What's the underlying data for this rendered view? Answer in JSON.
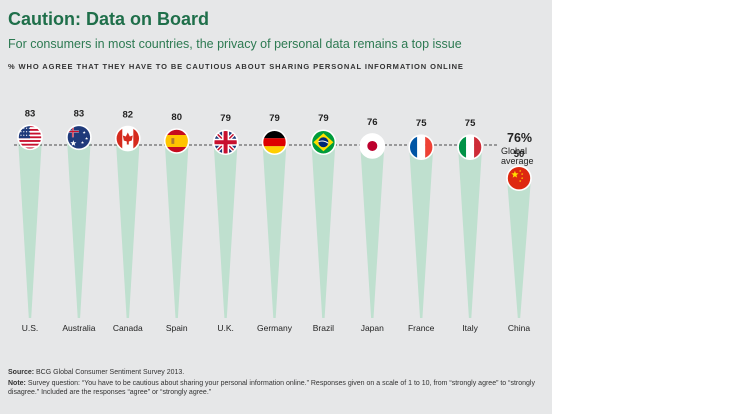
{
  "title": "Caution: Data on Board",
  "subtitle": "For consumers in most countries, the privacy of personal data remains a top issue",
  "chart_data": {
    "type": "bar",
    "title": "Caution: Data on Board",
    "subtitle": "For consumers in most countries, the privacy of personal data remains a top issue",
    "ylabel": "% WHO AGREE THAT THEY HAVE TO BE CAUTIOUS ABOUT SHARING PERSONAL INFORMATION ONLINE",
    "xlabel": "",
    "categories": [
      "U.S.",
      "Australia",
      "Canada",
      "Spain",
      "U.K.",
      "Germany",
      "Brazil",
      "Japan",
      "France",
      "Italy",
      "China"
    ],
    "values": [
      83,
      83,
      82,
      80,
      79,
      79,
      79,
      76,
      75,
      75,
      50
    ],
    "value_labels": [
      "83",
      "83",
      "82",
      "80",
      "79",
      "79",
      "79",
      "76",
      "75",
      "75",
      "50"
    ],
    "flags": [
      "us-flag",
      "australia-flag",
      "canada-flag",
      "spain-flag",
      "uk-flag",
      "germany-flag",
      "brazil-flag",
      "japan-flag",
      "france-flag",
      "italy-flag",
      "china-flag"
    ],
    "reference_line": {
      "value": 76,
      "label_value": "76%",
      "label_text": "Global average"
    },
    "ylim": [
      0,
      90
    ],
    "grid": false
  },
  "source": {
    "label": "Source:",
    "text": "BCG Global Consumer Sentiment Survey 2013."
  },
  "note": {
    "label": "Note:",
    "text": "Survey question: “You have to be cautious about sharing your personal information online.” Responses given on a scale of 1 to 10, from “strongly agree” to “strongly disagree.” Included are the responses “agree” or “strongly agree.”"
  },
  "colors": {
    "title": "#1f6f4a",
    "spike": "#bfe0cf",
    "background": "#e6e7e8",
    "text": "#222222"
  }
}
